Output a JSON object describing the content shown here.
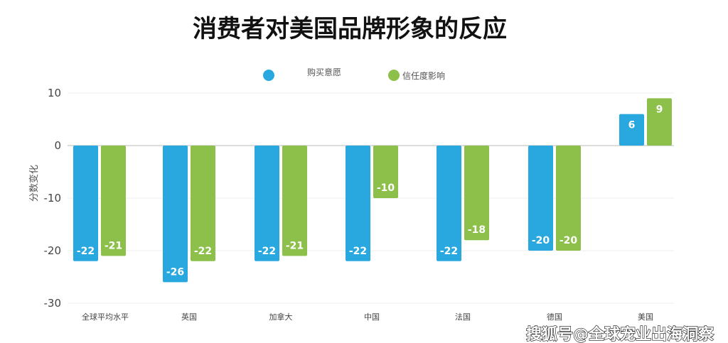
{
  "chart_data": {
    "type": "bar",
    "title": "消费者对美国品牌形象的反应",
    "xlabel": "",
    "ylabel": "分数变化",
    "ylim": [
      -30,
      10
    ],
    "yticks": [
      10,
      0,
      -10,
      -20,
      -30
    ],
    "grid": true,
    "legend_position": "top",
    "categories": [
      "全球平均水平",
      "英国",
      "加拿大",
      "中国",
      "法国",
      "德国",
      "美国"
    ],
    "series": [
      {
        "name": "购买意愿",
        "color": "#29a8e0",
        "values": [
          -22,
          -26,
          -22,
          -22,
          -22,
          -20,
          6
        ]
      },
      {
        "name": "信任度影响",
        "color": "#8cc04a",
        "values": [
          -21,
          -22,
          -21,
          -10,
          -18,
          -20,
          9
        ]
      }
    ]
  },
  "watermark": "搜狐号@全球宠业出海洞察"
}
